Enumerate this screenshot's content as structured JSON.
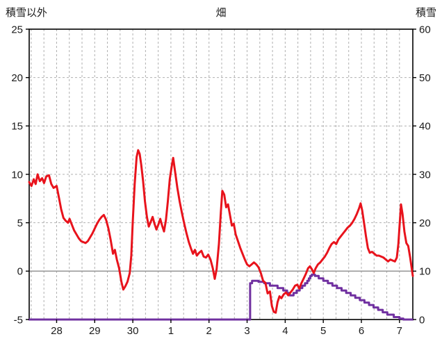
{
  "header": {
    "left_axis_title": "積雪以外",
    "chart_title": "畑",
    "right_axis_title": "積雪"
  },
  "colors": {
    "red_series": "#e8131c",
    "purple_series": "#7030a0",
    "grid": "#b0b0b0",
    "zero_line": "#8c8c8c",
    "border": "#000000",
    "text": "#1a1a1a"
  },
  "chart_data": {
    "type": "line",
    "title": "畑",
    "left_axis": {
      "label": "積雪以外",
      "min": -5,
      "max": 25,
      "ticks": [
        25,
        20,
        15,
        10,
        5,
        0,
        -5
      ]
    },
    "right_axis": {
      "label": "積雪",
      "min": 0,
      "max": 60,
      "ticks": [
        60,
        50,
        40,
        30,
        20,
        10,
        0
      ]
    },
    "x_axis": {
      "labels": [
        "28",
        "29",
        "30",
        "1",
        "2",
        "3",
        "4",
        "5",
        "6",
        "7"
      ],
      "label_positions": [
        0,
        1,
        2,
        3,
        4,
        5,
        6,
        7,
        8,
        9
      ],
      "min": -0.72,
      "max": 9.35,
      "grid_interval": 0.333333
    },
    "zero_line_value": 0,
    "grid": true,
    "legend": "none",
    "series": [
      {
        "name": "red-line (積雪以外)",
        "axis": "left",
        "color": "#e8131c",
        "width": 3,
        "points": [
          [
            -0.72,
            9.2
          ],
          [
            -0.66,
            8.8
          ],
          [
            -0.6,
            9.5
          ],
          [
            -0.55,
            9.0
          ],
          [
            -0.5,
            10.0
          ],
          [
            -0.44,
            9.3
          ],
          [
            -0.38,
            9.6
          ],
          [
            -0.33,
            9.1
          ],
          [
            -0.27,
            9.8
          ],
          [
            -0.2,
            9.9
          ],
          [
            -0.14,
            9.0
          ],
          [
            -0.08,
            8.6
          ],
          [
            0,
            8.8
          ],
          [
            0.06,
            7.6
          ],
          [
            0.12,
            6.4
          ],
          [
            0.18,
            5.5
          ],
          [
            0.24,
            5.2
          ],
          [
            0.3,
            5.0
          ],
          [
            0.34,
            5.4
          ],
          [
            0.4,
            4.8
          ],
          [
            0.46,
            4.2
          ],
          [
            0.52,
            3.8
          ],
          [
            0.58,
            3.4
          ],
          [
            0.64,
            3.1
          ],
          [
            0.7,
            3.0
          ],
          [
            0.76,
            2.9
          ],
          [
            0.82,
            3.1
          ],
          [
            0.88,
            3.5
          ],
          [
            0.94,
            3.9
          ],
          [
            1.0,
            4.4
          ],
          [
            1.06,
            4.9
          ],
          [
            1.12,
            5.3
          ],
          [
            1.18,
            5.6
          ],
          [
            1.24,
            5.8
          ],
          [
            1.3,
            5.3
          ],
          [
            1.36,
            4.4
          ],
          [
            1.42,
            3.2
          ],
          [
            1.48,
            1.8
          ],
          [
            1.53,
            2.2
          ],
          [
            1.58,
            1.2
          ],
          [
            1.64,
            0.3
          ],
          [
            1.7,
            -1.1
          ],
          [
            1.75,
            -1.9
          ],
          [
            1.8,
            -1.6
          ],
          [
            1.86,
            -1.1
          ],
          [
            1.92,
            -0.2
          ],
          [
            1.96,
            1.6
          ],
          [
            2.0,
            5.2
          ],
          [
            2.05,
            9.0
          ],
          [
            2.1,
            11.8
          ],
          [
            2.14,
            12.5
          ],
          [
            2.18,
            12.1
          ],
          [
            2.22,
            11.0
          ],
          [
            2.27,
            9.3
          ],
          [
            2.32,
            7.2
          ],
          [
            2.37,
            5.6
          ],
          [
            2.42,
            4.6
          ],
          [
            2.47,
            5.1
          ],
          [
            2.52,
            5.6
          ],
          [
            2.57,
            4.9
          ],
          [
            2.62,
            4.3
          ],
          [
            2.67,
            4.8
          ],
          [
            2.72,
            5.4
          ],
          [
            2.77,
            4.7
          ],
          [
            2.82,
            4.1
          ],
          [
            2.87,
            5.3
          ],
          [
            2.92,
            7.2
          ],
          [
            2.97,
            9.5
          ],
          [
            3.02,
            10.8
          ],
          [
            3.06,
            11.7
          ],
          [
            3.11,
            10.3
          ],
          [
            3.17,
            8.6
          ],
          [
            3.23,
            7.2
          ],
          [
            3.29,
            6.0
          ],
          [
            3.35,
            4.9
          ],
          [
            3.41,
            3.9
          ],
          [
            3.47,
            3.0
          ],
          [
            3.53,
            2.3
          ],
          [
            3.58,
            1.8
          ],
          [
            3.63,
            2.2
          ],
          [
            3.68,
            1.6
          ],
          [
            3.74,
            1.9
          ],
          [
            3.8,
            2.1
          ],
          [
            3.86,
            1.5
          ],
          [
            3.92,
            1.4
          ],
          [
            3.98,
            1.7
          ],
          [
            4.04,
            1.2
          ],
          [
            4.1,
            0.3
          ],
          [
            4.15,
            -0.8
          ],
          [
            4.2,
            0.2
          ],
          [
            4.26,
            2.8
          ],
          [
            4.31,
            6.0
          ],
          [
            4.35,
            8.3
          ],
          [
            4.4,
            7.9
          ],
          [
            4.45,
            6.6
          ],
          [
            4.5,
            6.9
          ],
          [
            4.55,
            5.8
          ],
          [
            4.6,
            4.7
          ],
          [
            4.65,
            4.9
          ],
          [
            4.7,
            3.8
          ],
          [
            4.76,
            3.1
          ],
          [
            4.82,
            2.4
          ],
          [
            4.88,
            1.8
          ],
          [
            4.94,
            1.2
          ],
          [
            5.0,
            0.7
          ],
          [
            5.06,
            0.5
          ],
          [
            5.12,
            0.7
          ],
          [
            5.18,
            0.9
          ],
          [
            5.24,
            0.7
          ],
          [
            5.3,
            0.4
          ],
          [
            5.36,
            -0.2
          ],
          [
            5.42,
            -1.0
          ],
          [
            5.48,
            -1.2
          ],
          [
            5.54,
            -2.3
          ],
          [
            5.6,
            -2.1
          ],
          [
            5.65,
            -3.6
          ],
          [
            5.7,
            -4.2
          ],
          [
            5.75,
            -4.3
          ],
          [
            5.8,
            -3.2
          ],
          [
            5.85,
            -2.6
          ],
          [
            5.9,
            -2.8
          ],
          [
            5.96,
            -2.4
          ],
          [
            6.02,
            -2.2
          ],
          [
            6.08,
            -2.5
          ],
          [
            6.14,
            -2.2
          ],
          [
            6.2,
            -1.9
          ],
          [
            6.26,
            -1.5
          ],
          [
            6.32,
            -1.4
          ],
          [
            6.37,
            -1.8
          ],
          [
            6.42,
            -1.3
          ],
          [
            6.48,
            -0.8
          ],
          [
            6.54,
            -0.3
          ],
          [
            6.6,
            0.3
          ],
          [
            6.65,
            0.5
          ],
          [
            6.7,
            0.2
          ],
          [
            6.75,
            -0.2
          ],
          [
            6.8,
            0.3
          ],
          [
            6.86,
            0.7
          ],
          [
            6.92,
            0.9
          ],
          [
            6.98,
            1.2
          ],
          [
            7.04,
            1.5
          ],
          [
            7.1,
            1.9
          ],
          [
            7.16,
            2.4
          ],
          [
            7.22,
            2.8
          ],
          [
            7.28,
            3.0
          ],
          [
            7.34,
            2.8
          ],
          [
            7.4,
            3.3
          ],
          [
            7.46,
            3.6
          ],
          [
            7.52,
            3.9
          ],
          [
            7.58,
            4.2
          ],
          [
            7.64,
            4.5
          ],
          [
            7.7,
            4.7
          ],
          [
            7.76,
            5.0
          ],
          [
            7.82,
            5.4
          ],
          [
            7.88,
            5.9
          ],
          [
            7.94,
            6.5
          ],
          [
            7.98,
            7.0
          ],
          [
            8.02,
            6.3
          ],
          [
            8.07,
            5.0
          ],
          [
            8.12,
            3.6
          ],
          [
            8.17,
            2.4
          ],
          [
            8.22,
            1.9
          ],
          [
            8.28,
            2.0
          ],
          [
            8.34,
            1.8
          ],
          [
            8.4,
            1.6
          ],
          [
            8.46,
            1.6
          ],
          [
            8.52,
            1.5
          ],
          [
            8.58,
            1.4
          ],
          [
            8.64,
            1.2
          ],
          [
            8.7,
            1.0
          ],
          [
            8.76,
            1.2
          ],
          [
            8.82,
            1.1
          ],
          [
            8.88,
            1.0
          ],
          [
            8.93,
            1.4
          ],
          [
            8.97,
            2.8
          ],
          [
            9.01,
            5.2
          ],
          [
            9.04,
            6.9
          ],
          [
            9.08,
            5.9
          ],
          [
            9.13,
            4.1
          ],
          [
            9.18,
            2.9
          ],
          [
            9.23,
            2.6
          ],
          [
            9.28,
            1.4
          ],
          [
            9.32,
            0.3
          ],
          [
            9.35,
            -0.5
          ]
        ]
      },
      {
        "name": "purple-line (積雪)",
        "axis": "right",
        "color": "#7030a0",
        "width": 3,
        "points": [
          [
            -0.72,
            0
          ],
          [
            5.08,
            0
          ],
          [
            5.08,
            7.5
          ],
          [
            5.13,
            7.5
          ],
          [
            5.13,
            8
          ],
          [
            5.3,
            8
          ],
          [
            5.3,
            7.8
          ],
          [
            5.45,
            7.8
          ],
          [
            5.45,
            7.5
          ],
          [
            5.6,
            7.5
          ],
          [
            5.6,
            7
          ],
          [
            5.8,
            7
          ],
          [
            5.8,
            6.5
          ],
          [
            5.95,
            6.5
          ],
          [
            5.95,
            6
          ],
          [
            6.05,
            6
          ],
          [
            6.05,
            5.5
          ],
          [
            6.12,
            5.5
          ],
          [
            6.12,
            5
          ],
          [
            6.22,
            5
          ],
          [
            6.22,
            5.5
          ],
          [
            6.3,
            5.5
          ],
          [
            6.3,
            6
          ],
          [
            6.38,
            6
          ],
          [
            6.38,
            6.5
          ],
          [
            6.45,
            6.5
          ],
          [
            6.45,
            7
          ],
          [
            6.52,
            7
          ],
          [
            6.52,
            7.5
          ],
          [
            6.58,
            7.5
          ],
          [
            6.58,
            8
          ],
          [
            6.62,
            8
          ],
          [
            6.62,
            8.5
          ],
          [
            6.66,
            8.5
          ],
          [
            6.66,
            9
          ],
          [
            6.7,
            9
          ],
          [
            6.7,
            9.3
          ],
          [
            6.78,
            9.3
          ],
          [
            6.78,
            9
          ],
          [
            6.88,
            9
          ],
          [
            6.88,
            8.5
          ],
          [
            7.0,
            8.5
          ],
          [
            7.0,
            8
          ],
          [
            7.12,
            8
          ],
          [
            7.12,
            7.5
          ],
          [
            7.24,
            7.5
          ],
          [
            7.24,
            7
          ],
          [
            7.36,
            7
          ],
          [
            7.36,
            6.5
          ],
          [
            7.48,
            6.5
          ],
          [
            7.48,
            6
          ],
          [
            7.6,
            6
          ],
          [
            7.6,
            5.5
          ],
          [
            7.72,
            5.5
          ],
          [
            7.72,
            5
          ],
          [
            7.84,
            5
          ],
          [
            7.84,
            4.5
          ],
          [
            7.96,
            4.5
          ],
          [
            7.96,
            4
          ],
          [
            8.08,
            4
          ],
          [
            8.08,
            3.5
          ],
          [
            8.2,
            3.5
          ],
          [
            8.2,
            3
          ],
          [
            8.32,
            3
          ],
          [
            8.32,
            2.5
          ],
          [
            8.44,
            2.5
          ],
          [
            8.44,
            2
          ],
          [
            8.56,
            2
          ],
          [
            8.56,
            1.5
          ],
          [
            8.68,
            1.5
          ],
          [
            8.68,
            1
          ],
          [
            8.85,
            1
          ],
          [
            8.85,
            0.5
          ],
          [
            9.0,
            0.5
          ],
          [
            9.0,
            0.2
          ],
          [
            9.1,
            0.2
          ],
          [
            9.1,
            0
          ],
          [
            9.35,
            0
          ]
        ]
      }
    ]
  }
}
